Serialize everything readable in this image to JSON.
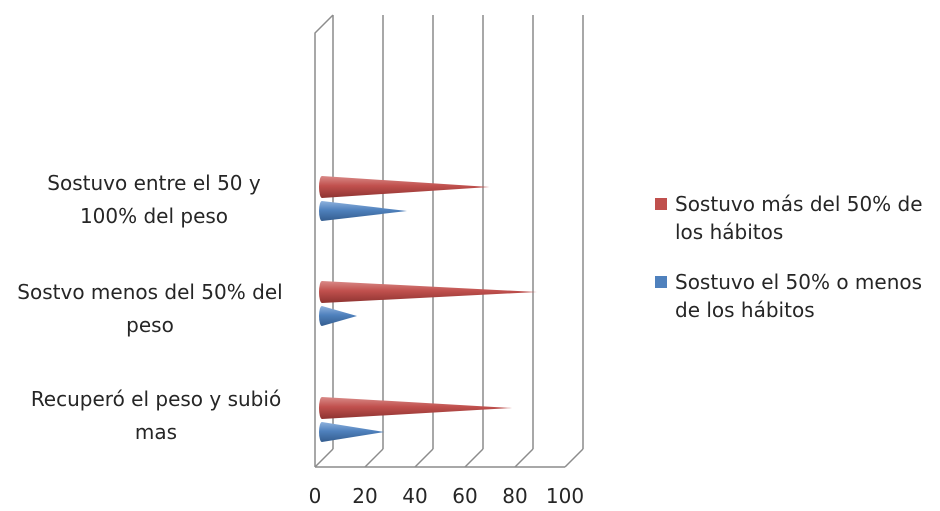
{
  "chart_data": {
    "type": "bar",
    "orientation": "horizontal",
    "style": "3d-cone",
    "categories": [
      "Sostuvo entre el 50 y 100% del peso",
      "Sostvo menos del 50% del peso",
      "Recuperó el peso y subió mas"
    ],
    "category_lines": [
      [
        "Sostuvo entre el 50 y",
        "100% del peso"
      ],
      [
        "Sostvo menos del 50% del",
        "peso"
      ],
      [
        "Recuperó el peso y subió",
        "mas"
      ]
    ],
    "series": [
      {
        "name": "Sostuvo más del 50% de los hábitos",
        "legend_lines": [
          "Sostuvo más del 50% de",
          "los hábitos"
        ],
        "color": "#c0504d",
        "values": [
          67,
          86,
          76
        ]
      },
      {
        "name": "Sostuvo el 50% o menos de los hábitos",
        "legend_lines": [
          "Sostuvo el 50% o menos",
          "de los hábitos"
        ],
        "color": "#4f81bd",
        "values": [
          34,
          14,
          25
        ]
      }
    ],
    "xlim": [
      0,
      100
    ],
    "x_ticks": [
      "0",
      "20",
      "40",
      "60",
      "80",
      "100"
    ],
    "grid": true,
    "legend_position": "right",
    "title": "",
    "xlabel": "",
    "ylabel": ""
  }
}
